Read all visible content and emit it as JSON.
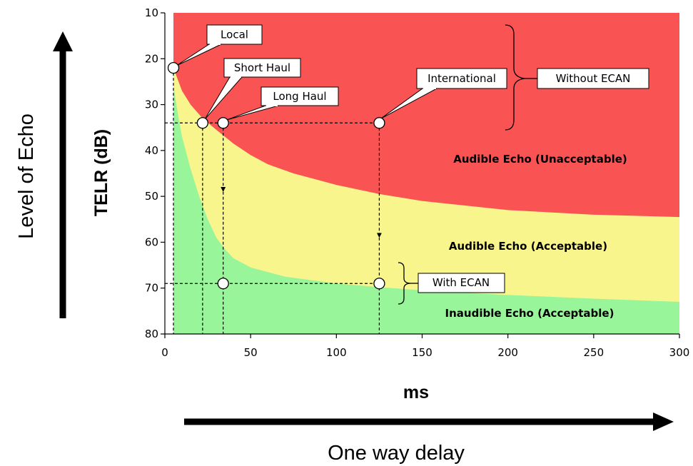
{
  "chart_data": {
    "type": "area",
    "xlabel": "ms",
    "ylabel": "TELR (dB)",
    "xlim": [
      0,
      300
    ],
    "ylim": [
      10,
      80
    ],
    "y_inverted": true,
    "x_ticks": [
      "0",
      "50",
      "100",
      "150",
      "200",
      "250",
      "300"
    ],
    "y_ticks": [
      "10",
      "20",
      "30",
      "40",
      "50",
      "60",
      "70",
      "80"
    ],
    "grid": false,
    "boundaries": [
      {
        "name": "acceptability limit",
        "x": [
          5,
          10,
          15,
          22,
          30,
          40,
          50,
          60,
          75,
          90,
          100,
          125,
          150,
          175,
          200,
          250,
          300
        ],
        "y": [
          22,
          27,
          30,
          33,
          35.5,
          38.5,
          41,
          43,
          45,
          46.5,
          47.5,
          49.5,
          51,
          52,
          53,
          54,
          54.5
        ]
      },
      {
        "name": "audibility limit",
        "x": [
          5,
          8,
          10,
          15,
          20,
          25,
          30,
          35,
          40,
          50,
          60,
          70,
          80,
          100,
          125,
          150,
          200,
          250,
          300
        ],
        "y": [
          26,
          33,
          37,
          44,
          50,
          55,
          59,
          61.5,
          63.5,
          65.5,
          66.5,
          67.5,
          68,
          69,
          69.8,
          70.5,
          71.5,
          72.3,
          73
        ]
      }
    ],
    "regions": [
      {
        "label": "Audible Echo (Unacceptable)",
        "color": "#f95354"
      },
      {
        "label": "Audible Echo (Acceptable)",
        "color": "#f7f58c"
      },
      {
        "label": "Inaudible Echo (Acceptable)",
        "color": "#99f59a"
      }
    ],
    "points": [
      {
        "label": "Local",
        "x": 5,
        "y": 22
      },
      {
        "label": "Short Haul",
        "x": 22,
        "y": 34
      },
      {
        "label": "Long Haul",
        "x": 34,
        "y": 34
      },
      {
        "label": "International",
        "x": 125,
        "y": 34
      },
      {
        "label": "",
        "x": 34,
        "y": 69
      },
      {
        "label": "",
        "x": 125,
        "y": 69
      }
    ],
    "annotations": [
      "Without ECAN",
      "With ECAN"
    ]
  },
  "labels": {
    "ms": "ms",
    "telr": "TELR (dB)",
    "level_of_echo": "Level of Echo",
    "one_way_delay": "One way delay"
  },
  "colors": {
    "unacceptable": "#f95354",
    "acceptable": "#f7f58c",
    "inaudible": "#99f59a",
    "marker_fill": "#ffffff",
    "line": "#000000"
  }
}
